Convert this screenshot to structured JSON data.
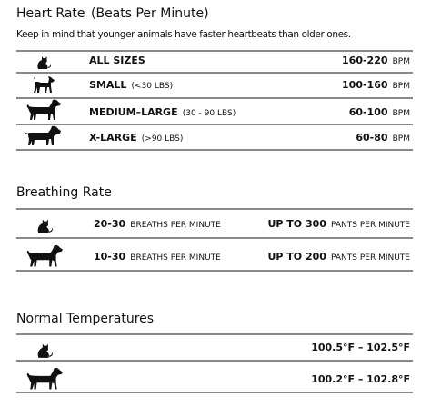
{
  "heart_rate": {
    "title": "Heart Rate",
    "unit": "(Beats Per Minute)",
    "note": "Keep in mind that younger animals have faster heartbeats than older ones.",
    "rows": [
      {
        "size": "ALL SIZES",
        "range": "160-220",
        "unit": "BPM"
      },
      {
        "size": "SMALL",
        "weight": "(<30 LBS)",
        "range": "100-160",
        "unit": "BPM"
      },
      {
        "size": "MEDIUM–LARGE",
        "weight": "(30 - 90 LBS)",
        "range": "60-100",
        "unit": "BPM"
      },
      {
        "size": "X-LARGE",
        "weight": "(>90 LBS)",
        "range": "60-80",
        "unit": "BPM"
      }
    ]
  },
  "breathing_rate": {
    "title": "Breathing Rate",
    "rows": [
      {
        "left_value": "20-30",
        "left_unit": "BREATHS PER MINUTE",
        "right_value": "UP TO 300",
        "right_unit": "PANTS PER MINUTE"
      },
      {
        "left_value": "10-30",
        "left_unit": "BREATHS PER MINUTE",
        "right_value": "UP TO 200",
        "right_unit": "PANTS PER MINUTE"
      }
    ]
  },
  "temperatures": {
    "title": "Normal Temperatures",
    "rows": [
      "100.5°F – 102.5°F",
      "100.2°F – 102.8°F"
    ]
  }
}
